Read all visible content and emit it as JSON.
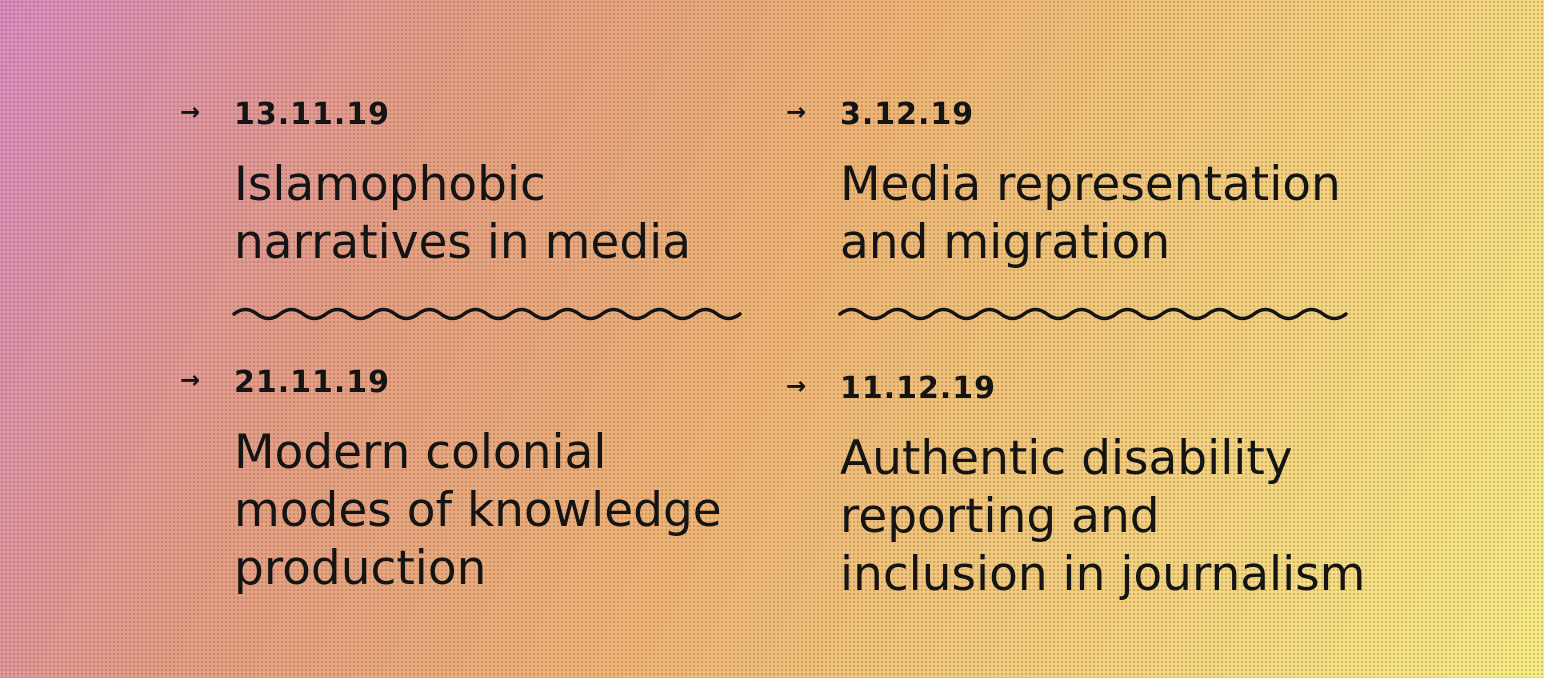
{
  "events": [
    {
      "date": "13.11.19",
      "title": "Islamophobic\nnarratives in media",
      "icon": "arrow-right-icon"
    },
    {
      "date": "3.12.19",
      "title": "Media representation\nand migration",
      "icon": "arrow-right-icon"
    },
    {
      "date": "21.11.19",
      "title": "Modern colonial\nmodes of knowledge\nproduction",
      "icon": "arrow-right-icon"
    },
    {
      "date": "11.12.19",
      "title": "Authentic disability\nreporting and\ninclusion in journalism",
      "icon": "arrow-right-icon"
    }
  ],
  "arrow_glyph": "→",
  "colors": {
    "text": "#141414",
    "gradient_start": "#d78fc9",
    "gradient_end": "#f6f38a"
  }
}
